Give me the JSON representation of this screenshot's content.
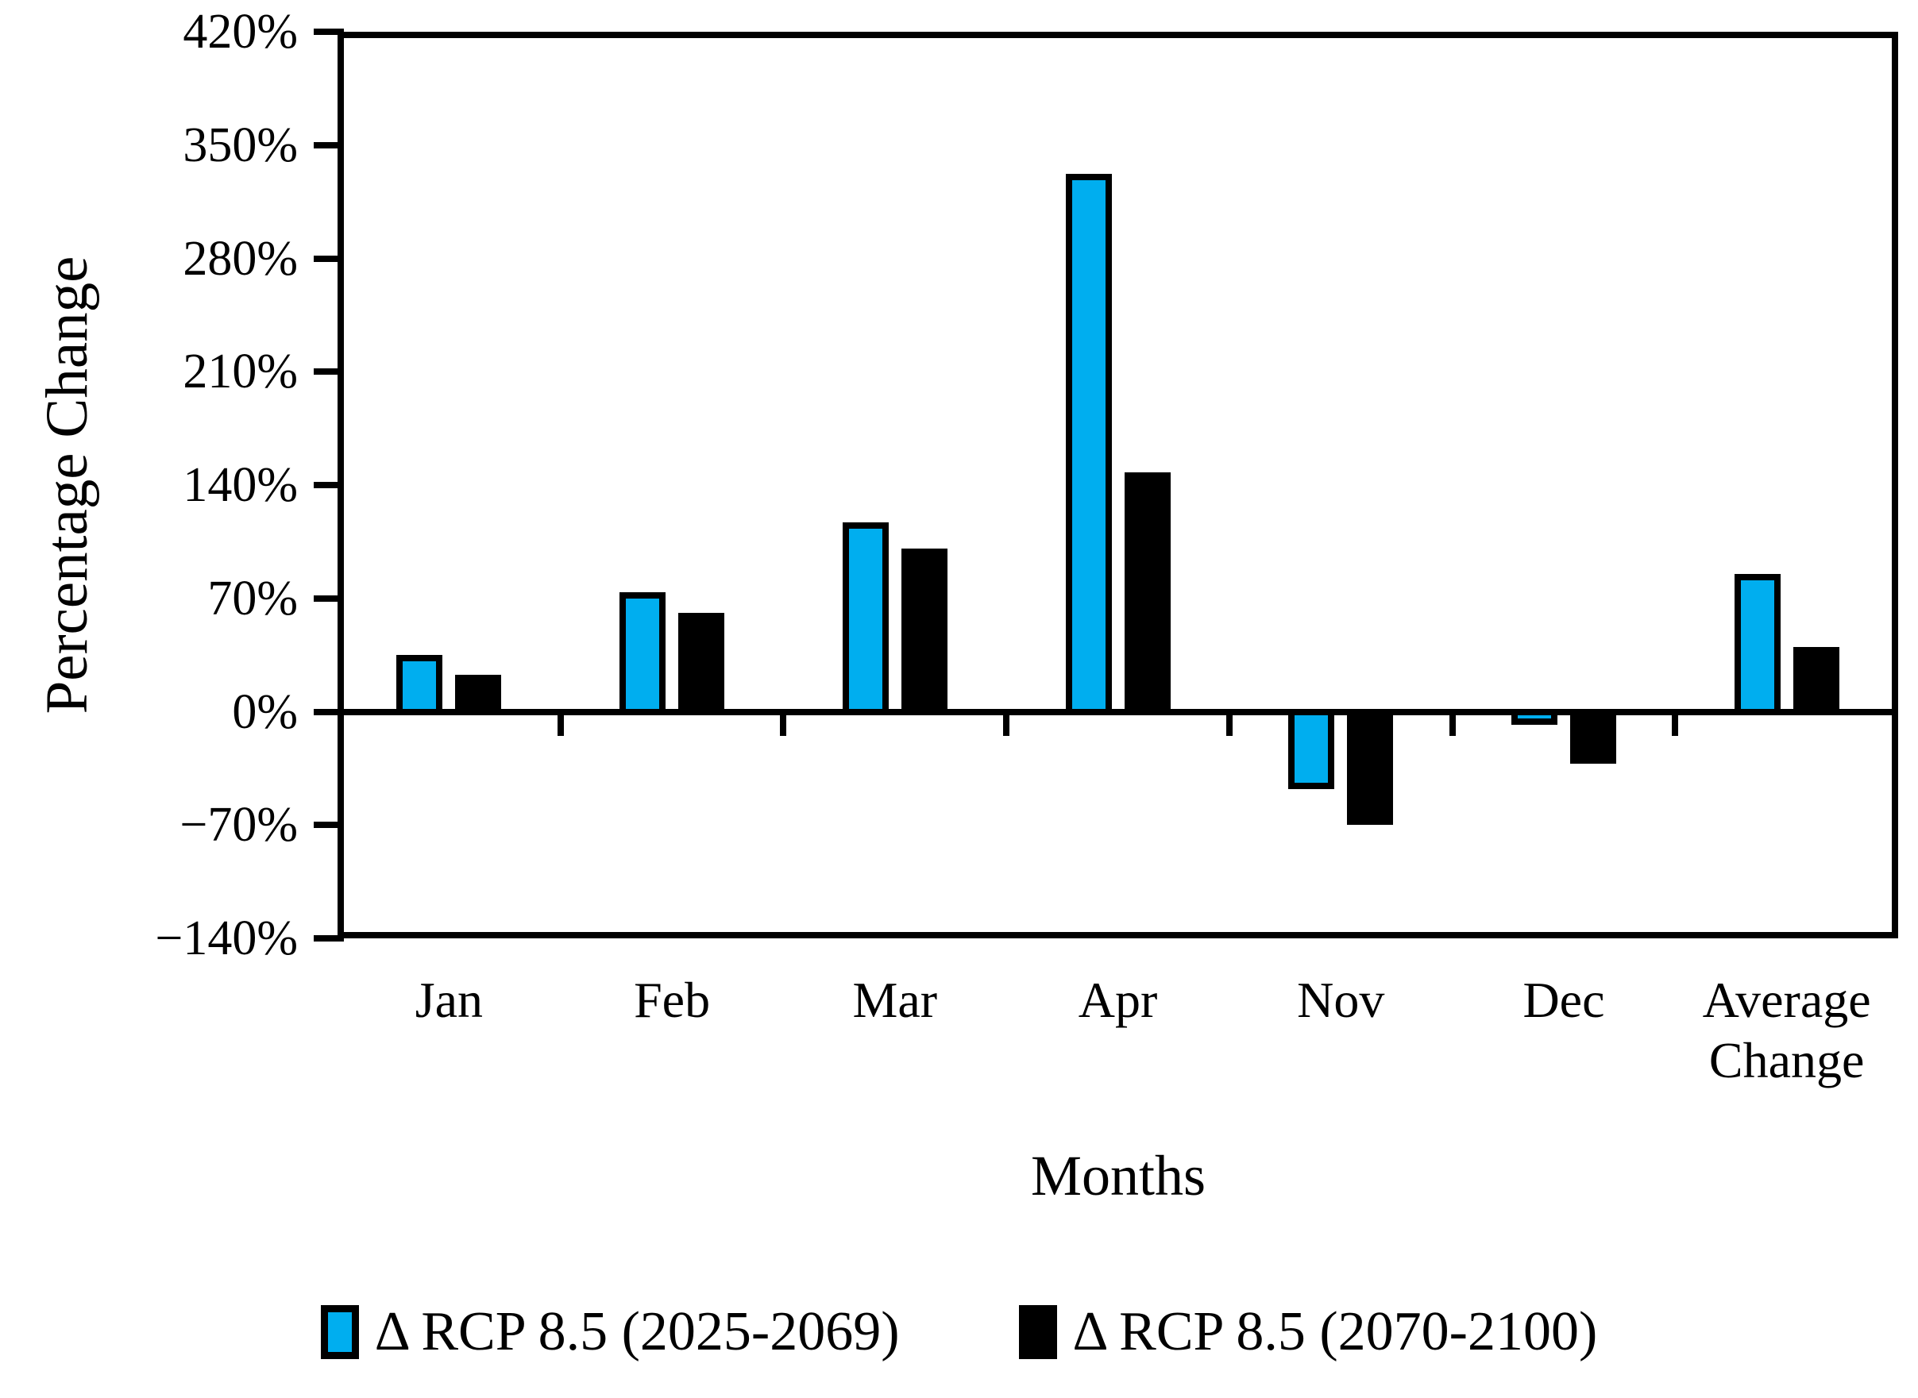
{
  "figure": {
    "y_axis": {
      "title": "Percentage Change",
      "ticks": [
        {
          "value": 420,
          "label": "420%"
        },
        {
          "value": 350,
          "label": "350%"
        },
        {
          "value": 280,
          "label": "280%"
        },
        {
          "value": 210,
          "label": "210%"
        },
        {
          "value": 140,
          "label": "140%"
        },
        {
          "value": 70,
          "label": "70%"
        },
        {
          "value": 0,
          "label": "0%"
        },
        {
          "value": -70,
          "label": "−70%"
        },
        {
          "value": -140,
          "label": "−140%"
        }
      ]
    },
    "x_axis": {
      "title": "Months"
    },
    "colors": {
      "series_blue": "#00AEEF",
      "series_black": "#000000",
      "axis": "#000000",
      "background": "#FFFFFF"
    }
  },
  "chart_data": {
    "type": "bar",
    "title": "",
    "xlabel": "Months",
    "ylabel": "Percentage Change",
    "categories": [
      "Jan",
      "Feb",
      "Mar",
      "Apr",
      "Nov",
      "Dec",
      "Average Change"
    ],
    "series": [
      {
        "name": "Δ RCP 8.5 (2025-2069)",
        "color": "#00AEEF",
        "values": [
          35,
          74,
          117,
          332,
          -48,
          -8,
          85
        ]
      },
      {
        "name": "Δ RCP 8.5 (2070-2100)",
        "color": "#000000",
        "values": [
          23,
          61,
          101,
          148,
          -70,
          -32,
          40
        ]
      }
    ],
    "ylim": [
      -140,
      420
    ],
    "ytick_step": 70,
    "unit": "%",
    "grid": false,
    "legend_position": "bottom"
  }
}
